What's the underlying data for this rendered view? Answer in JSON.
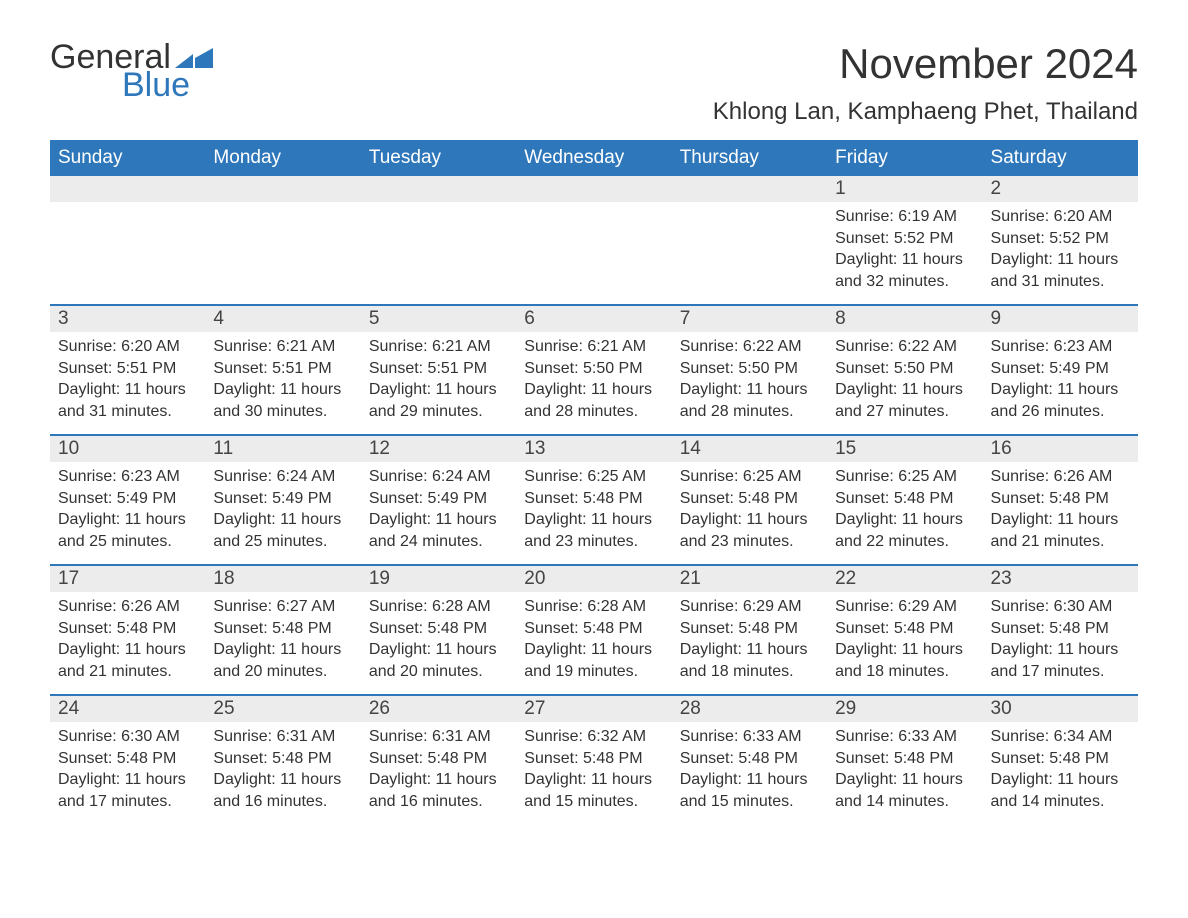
{
  "logo": {
    "text1": "General",
    "text2": "Blue",
    "icon_color": "#2e77bb"
  },
  "title": "November 2024",
  "location": "Khlong Lan, Kamphaeng Phet, Thailand",
  "colors": {
    "header_bg": "#2e77bb",
    "header_text": "#ffffff",
    "daynum_bg": "#ececec",
    "body_text": "#333333",
    "rule": "#2e77bb"
  },
  "weekdays": [
    "Sunday",
    "Monday",
    "Tuesday",
    "Wednesday",
    "Thursday",
    "Friday",
    "Saturday"
  ],
  "weeks": [
    [
      {
        "empty": true
      },
      {
        "empty": true
      },
      {
        "empty": true
      },
      {
        "empty": true
      },
      {
        "empty": true
      },
      {
        "day": "1",
        "sunrise": "6:19 AM",
        "sunset": "5:52 PM",
        "daylight": "11 hours and 32 minutes."
      },
      {
        "day": "2",
        "sunrise": "6:20 AM",
        "sunset": "5:52 PM",
        "daylight": "11 hours and 31 minutes."
      }
    ],
    [
      {
        "day": "3",
        "sunrise": "6:20 AM",
        "sunset": "5:51 PM",
        "daylight": "11 hours and 31 minutes."
      },
      {
        "day": "4",
        "sunrise": "6:21 AM",
        "sunset": "5:51 PM",
        "daylight": "11 hours and 30 minutes."
      },
      {
        "day": "5",
        "sunrise": "6:21 AM",
        "sunset": "5:51 PM",
        "daylight": "11 hours and 29 minutes."
      },
      {
        "day": "6",
        "sunrise": "6:21 AM",
        "sunset": "5:50 PM",
        "daylight": "11 hours and 28 minutes."
      },
      {
        "day": "7",
        "sunrise": "6:22 AM",
        "sunset": "5:50 PM",
        "daylight": "11 hours and 28 minutes."
      },
      {
        "day": "8",
        "sunrise": "6:22 AM",
        "sunset": "5:50 PM",
        "daylight": "11 hours and 27 minutes."
      },
      {
        "day": "9",
        "sunrise": "6:23 AM",
        "sunset": "5:49 PM",
        "daylight": "11 hours and 26 minutes."
      }
    ],
    [
      {
        "day": "10",
        "sunrise": "6:23 AM",
        "sunset": "5:49 PM",
        "daylight": "11 hours and 25 minutes."
      },
      {
        "day": "11",
        "sunrise": "6:24 AM",
        "sunset": "5:49 PM",
        "daylight": "11 hours and 25 minutes."
      },
      {
        "day": "12",
        "sunrise": "6:24 AM",
        "sunset": "5:49 PM",
        "daylight": "11 hours and 24 minutes."
      },
      {
        "day": "13",
        "sunrise": "6:25 AM",
        "sunset": "5:48 PM",
        "daylight": "11 hours and 23 minutes."
      },
      {
        "day": "14",
        "sunrise": "6:25 AM",
        "sunset": "5:48 PM",
        "daylight": "11 hours and 23 minutes."
      },
      {
        "day": "15",
        "sunrise": "6:25 AM",
        "sunset": "5:48 PM",
        "daylight": "11 hours and 22 minutes."
      },
      {
        "day": "16",
        "sunrise": "6:26 AM",
        "sunset": "5:48 PM",
        "daylight": "11 hours and 21 minutes."
      }
    ],
    [
      {
        "day": "17",
        "sunrise": "6:26 AM",
        "sunset": "5:48 PM",
        "daylight": "11 hours and 21 minutes."
      },
      {
        "day": "18",
        "sunrise": "6:27 AM",
        "sunset": "5:48 PM",
        "daylight": "11 hours and 20 minutes."
      },
      {
        "day": "19",
        "sunrise": "6:28 AM",
        "sunset": "5:48 PM",
        "daylight": "11 hours and 20 minutes."
      },
      {
        "day": "20",
        "sunrise": "6:28 AM",
        "sunset": "5:48 PM",
        "daylight": "11 hours and 19 minutes."
      },
      {
        "day": "21",
        "sunrise": "6:29 AM",
        "sunset": "5:48 PM",
        "daylight": "11 hours and 18 minutes."
      },
      {
        "day": "22",
        "sunrise": "6:29 AM",
        "sunset": "5:48 PM",
        "daylight": "11 hours and 18 minutes."
      },
      {
        "day": "23",
        "sunrise": "6:30 AM",
        "sunset": "5:48 PM",
        "daylight": "11 hours and 17 minutes."
      }
    ],
    [
      {
        "day": "24",
        "sunrise": "6:30 AM",
        "sunset": "5:48 PM",
        "daylight": "11 hours and 17 minutes."
      },
      {
        "day": "25",
        "sunrise": "6:31 AM",
        "sunset": "5:48 PM",
        "daylight": "11 hours and 16 minutes."
      },
      {
        "day": "26",
        "sunrise": "6:31 AM",
        "sunset": "5:48 PM",
        "daylight": "11 hours and 16 minutes."
      },
      {
        "day": "27",
        "sunrise": "6:32 AM",
        "sunset": "5:48 PM",
        "daylight": "11 hours and 15 minutes."
      },
      {
        "day": "28",
        "sunrise": "6:33 AM",
        "sunset": "5:48 PM",
        "daylight": "11 hours and 15 minutes."
      },
      {
        "day": "29",
        "sunrise": "6:33 AM",
        "sunset": "5:48 PM",
        "daylight": "11 hours and 14 minutes."
      },
      {
        "day": "30",
        "sunrise": "6:34 AM",
        "sunset": "5:48 PM",
        "daylight": "11 hours and 14 minutes."
      }
    ]
  ],
  "labels": {
    "sunrise": "Sunrise: ",
    "sunset": "Sunset: ",
    "daylight": "Daylight: "
  }
}
